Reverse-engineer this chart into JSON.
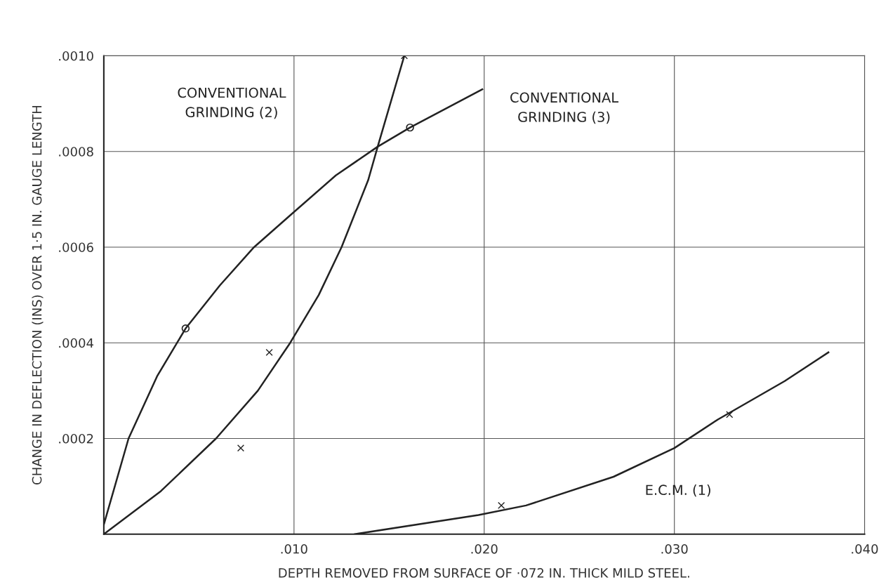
{
  "chart_data": {
    "type": "line",
    "xlabel": "DEPTH REMOVED FROM SURFACE OF ·072 IN. THICK MILD STEEL.",
    "ylabel": "CHANGE IN DEFLECTION (INS) OVER 1·5 IN. GAUGE LENGTH",
    "xlim": [
      0,
      0.04
    ],
    "ylim": [
      0,
      0.001
    ],
    "xticks": [
      {
        "value": 0.01,
        "label": ".010"
      },
      {
        "value": 0.02,
        "label": ".020"
      },
      {
        "value": 0.03,
        "label": ".030"
      },
      {
        "value": 0.04,
        "label": ".040"
      }
    ],
    "yticks": [
      {
        "value": 0.0002,
        "label": ".0002"
      },
      {
        "value": 0.0004,
        "label": ".0004"
      },
      {
        "value": 0.0006,
        "label": ".0006"
      },
      {
        "value": 0.0008,
        "label": ".0008"
      },
      {
        "value": 0.001,
        "label": ".0010"
      }
    ],
    "grid": true,
    "marker": "none",
    "line_style": "solid",
    "series": [
      {
        "color": "#222222",
        "x": [
          0,
          0.0013,
          0.0028,
          0.0043,
          0.0061,
          0.0079,
          0.0099,
          0.0122,
          0.0144,
          0.0161,
          0.0199
        ],
        "values": [
          2e-05,
          0.0002,
          0.00033,
          0.00043,
          0.00052,
          0.0006,
          0.00067,
          0.00075,
          0.00081,
          0.00085,
          0.00093
        ]
      },
      {
        "color": "#222222",
        "x": [
          0,
          0.003,
          0.0059,
          0.0081,
          0.0098,
          0.0113,
          0.0125,
          0.0139,
          0.0144,
          0.0158
        ],
        "values": [
          0,
          9e-05,
          0.0002,
          0.0003,
          0.0004,
          0.0005,
          0.0006,
          0.00074,
          0.00081,
          0.001
        ]
      },
      {
        "color": "#222222",
        "x": [
          0.0132,
          0.0197,
          0.0222,
          0.0268,
          0.03,
          0.0323,
          0.0358,
          0.0381
        ],
        "values": [
          0,
          4e-05,
          6e-05,
          0.00012,
          0.00018,
          0.00024,
          0.00032,
          0.00038
        ]
      },
      {
        "type": "scatter",
        "marker": "cross",
        "color": "#222222",
        "x": [
          0.0072,
          0.0087,
          0.0158,
          0.0209,
          0.0329
        ],
        "values": [
          0.00018,
          0.00038,
          0.001,
          6e-05,
          0.00025
        ]
      },
      {
        "type": "scatter",
        "marker": "circle",
        "color": "#222222",
        "x": [
          0.0043,
          0.0161
        ],
        "values": [
          0.00043,
          0.00085
        ]
      }
    ],
    "annotations": [
      "CONVENTIONAL\nGRINDING (2)",
      "CONVENTIONAL\nGRINDING (3)",
      "E.C.M. (1)"
    ]
  }
}
